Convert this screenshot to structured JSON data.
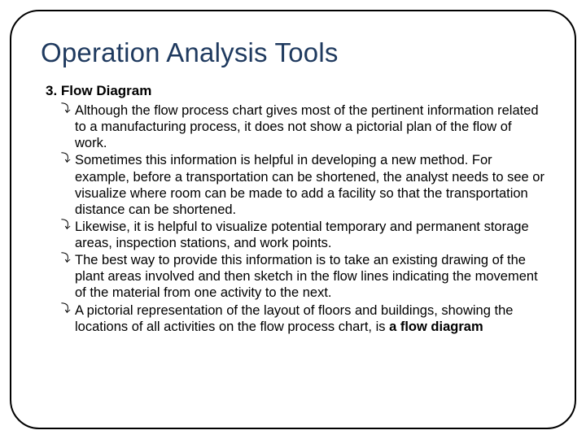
{
  "slide": {
    "title": "Operation Analysis Tools",
    "subheading": "3. Flow Diagram",
    "title_color": "#1f3a5f",
    "title_fontsize": 33,
    "subheading_fontsize": 17,
    "body_fontsize": 16.5,
    "text_color": "#000000",
    "background_color": "#ffffff",
    "border_color": "#000000",
    "border_radius": 36,
    "bullet_glyph": "⤵",
    "bullets": [
      {
        "text": "Although the flow process chart gives most of the pertinent information related to a manufacturing process, it does not show a pictorial plan of the flow of work."
      },
      {
        "text": "Sometimes this information is helpful in developing a new method. For example, before a transportation can be shortened, the analyst needs to see or visualize where room can be made to add a facility so that the transportation distance can be shortened."
      },
      {
        "text": "Likewise, it is helpful to visualize potential temporary and permanent storage areas, inspection stations, and work points."
      },
      {
        "text": "The best way to provide this information is to take an existing drawing of the plant areas involved and then sketch in the flow lines indicating the movement of the material from one activity to the next."
      },
      {
        "text_prefix": "A pictorial representation of the layout of floors and buildings, showing the locations of all activities on the flow process chart, is ",
        "text_bold": "a flow diagram"
      }
    ]
  }
}
